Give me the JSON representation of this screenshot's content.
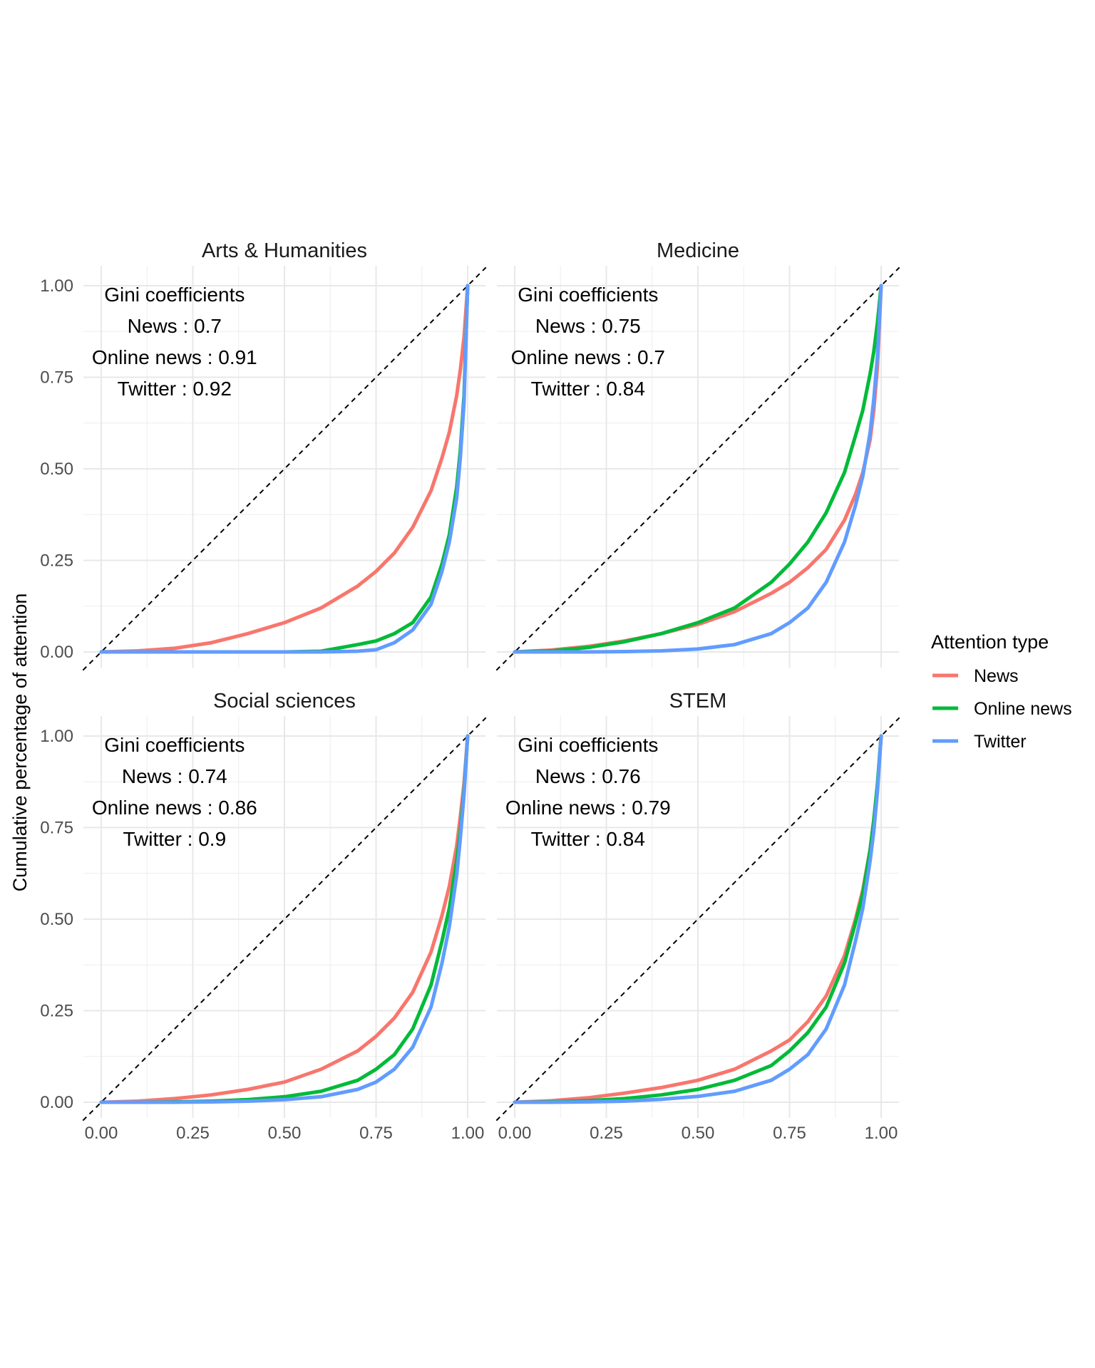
{
  "chart_data": {
    "type": "line",
    "ylabel": "Cumulative percentage of attention",
    "xlabel": "",
    "xlim": [
      0,
      1
    ],
    "ylim": [
      0,
      1
    ],
    "x_ticks": [
      "0.00",
      "0.25",
      "0.50",
      "0.75",
      "1.00"
    ],
    "y_ticks": [
      "0.00",
      "0.25",
      "0.50",
      "0.75",
      "1.00"
    ],
    "grid": true,
    "reference_line": {
      "style": "dashed",
      "color": "#000000",
      "from": [
        0,
        0
      ],
      "to": [
        1,
        1
      ]
    },
    "legend": {
      "title": "Attention type",
      "position": "right",
      "items": [
        {
          "name": "News",
          "color": "#F8766D"
        },
        {
          "name": "Online news",
          "color": "#00BA38"
        },
        {
          "name": "Twitter",
          "color": "#619CFF"
        }
      ]
    },
    "x": [
      0,
      0.1,
      0.2,
      0.3,
      0.4,
      0.5,
      0.6,
      0.7,
      0.75,
      0.8,
      0.85,
      0.9,
      0.93,
      0.95,
      0.97,
      0.98,
      0.99,
      1.0
    ],
    "panels": [
      {
        "title": "Arts & Humanities",
        "gini_heading": "Gini coefficients",
        "gini_lines": [
          "News : 0.7",
          "Online news : 0.91",
          "Twitter : 0.92"
        ],
        "series": [
          {
            "name": "News",
            "values": [
              0,
              0.003,
              0.01,
              0.025,
              0.05,
              0.08,
              0.12,
              0.18,
              0.22,
              0.27,
              0.34,
              0.44,
              0.53,
              0.6,
              0.7,
              0.77,
              0.86,
              1.0
            ]
          },
          {
            "name": "Online news",
            "values": [
              0,
              0,
              0,
              0,
              0,
              0,
              0.002,
              0.02,
              0.03,
              0.05,
              0.08,
              0.15,
              0.24,
              0.32,
              0.45,
              0.55,
              0.7,
              1.0
            ]
          },
          {
            "name": "Twitter",
            "values": [
              0,
              0,
              0,
              0,
              0,
              0,
              0,
              0.002,
              0.006,
              0.025,
              0.06,
              0.13,
              0.22,
              0.3,
              0.42,
              0.53,
              0.68,
              1.0
            ]
          }
        ]
      },
      {
        "title": "Medicine",
        "gini_heading": "Gini coefficients",
        "gini_lines": [
          "News : 0.75",
          "Online news : 0.7",
          "Twitter : 0.84"
        ],
        "series": [
          {
            "name": "News",
            "values": [
              0,
              0.005,
              0.015,
              0.03,
              0.05,
              0.075,
              0.11,
              0.16,
              0.19,
              0.23,
              0.28,
              0.36,
              0.43,
              0.49,
              0.58,
              0.66,
              0.78,
              1.0
            ]
          },
          {
            "name": "Online news",
            "values": [
              0,
              0.003,
              0.012,
              0.028,
              0.05,
              0.08,
              0.12,
              0.19,
              0.24,
              0.3,
              0.38,
              0.49,
              0.59,
              0.66,
              0.76,
              0.82,
              0.9,
              1.0
            ]
          },
          {
            "name": "Twitter",
            "values": [
              0,
              0,
              0,
              0.001,
              0.003,
              0.008,
              0.02,
              0.05,
              0.08,
              0.12,
              0.19,
              0.3,
              0.4,
              0.48,
              0.6,
              0.69,
              0.81,
              1.0
            ]
          }
        ]
      },
      {
        "title": "Social sciences",
        "gini_heading": "Gini coefficients",
        "gini_lines": [
          "News : 0.74",
          "Online news : 0.86",
          "Twitter : 0.9"
        ],
        "series": [
          {
            "name": "News",
            "values": [
              0,
              0.003,
              0.01,
              0.02,
              0.035,
              0.055,
              0.09,
              0.14,
              0.18,
              0.23,
              0.3,
              0.41,
              0.51,
              0.59,
              0.7,
              0.78,
              0.87,
              1.0
            ]
          },
          {
            "name": "Online news",
            "values": [
              0,
              0,
              0.001,
              0.003,
              0.007,
              0.015,
              0.03,
              0.06,
              0.09,
              0.13,
              0.2,
              0.32,
              0.44,
              0.53,
              0.66,
              0.74,
              0.85,
              1.0
            ]
          },
          {
            "name": "Twitter",
            "values": [
              0,
              0,
              0,
              0.001,
              0.003,
              0.007,
              0.015,
              0.035,
              0.055,
              0.09,
              0.15,
              0.26,
              0.38,
              0.48,
              0.62,
              0.72,
              0.84,
              1.0
            ]
          }
        ]
      },
      {
        "title": "STEM",
        "gini_heading": "Gini coefficients",
        "gini_lines": [
          "News : 0.76",
          "Online news : 0.79",
          "Twitter : 0.84"
        ],
        "series": [
          {
            "name": "News",
            "values": [
              0,
              0.004,
              0.012,
              0.025,
              0.04,
              0.06,
              0.09,
              0.14,
              0.17,
              0.22,
              0.29,
              0.4,
              0.5,
              0.58,
              0.69,
              0.77,
              0.86,
              1.0
            ]
          },
          {
            "name": "Online news",
            "values": [
              0,
              0.001,
              0.004,
              0.01,
              0.02,
              0.035,
              0.06,
              0.1,
              0.14,
              0.19,
              0.26,
              0.38,
              0.49,
              0.57,
              0.69,
              0.77,
              0.87,
              1.0
            ]
          },
          {
            "name": "Twitter",
            "values": [
              0,
              0,
              0.001,
              0.003,
              0.008,
              0.016,
              0.03,
              0.06,
              0.09,
              0.13,
              0.2,
              0.32,
              0.44,
              0.53,
              0.66,
              0.74,
              0.85,
              1.0
            ]
          }
        ]
      }
    ]
  }
}
